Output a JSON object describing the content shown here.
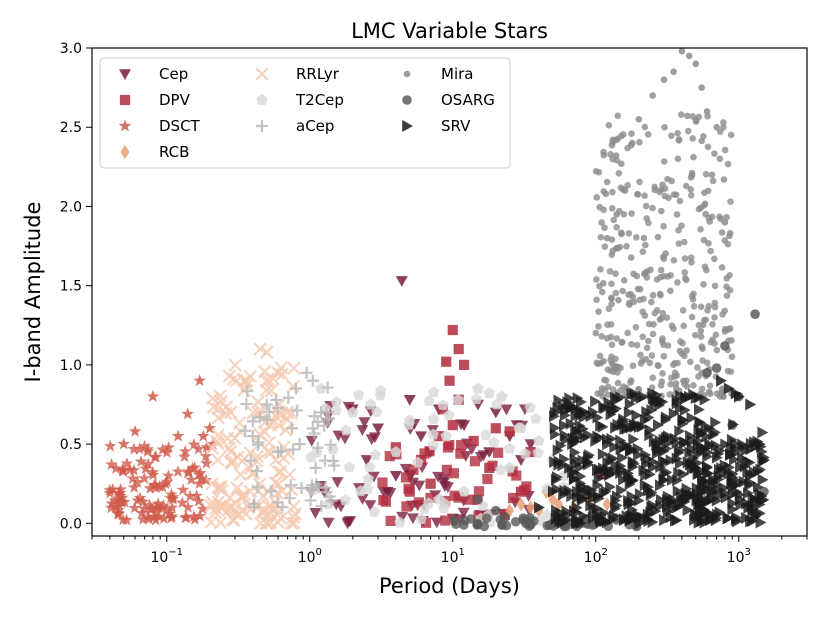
{
  "chart_data": {
    "type": "scatter",
    "title": "LMC Variable Stars",
    "xlabel": "Period (Days)",
    "ylabel": "I-band Amplitude",
    "xscale": "log",
    "xlim": [
      0.03,
      3000
    ],
    "ylim": [
      -0.08,
      3.0
    ],
    "x_ticks": [
      {
        "value": 0.1,
        "base": "10",
        "exp": "−1"
      },
      {
        "value": 1,
        "base": "10",
        "exp": "0"
      },
      {
        "value": 10,
        "base": "10",
        "exp": "1"
      },
      {
        "value": 100,
        "base": "10",
        "exp": "2"
      },
      {
        "value": 1000,
        "base": "10",
        "exp": "3"
      }
    ],
    "y_ticks": [
      {
        "value": 0.0,
        "label": "0.0"
      },
      {
        "value": 0.5,
        "label": "0.5"
      },
      {
        "value": 1.0,
        "label": "1.0"
      },
      {
        "value": 1.5,
        "label": "1.5"
      },
      {
        "value": 2.0,
        "label": "2.0"
      },
      {
        "value": 2.5,
        "label": "2.5"
      },
      {
        "value": 3.0,
        "label": "3.0"
      }
    ],
    "legend_position": "top-left",
    "legend_columns": 3,
    "series": [
      {
        "name": "Cep",
        "marker": "triangle-down",
        "color": "#7a1f3d",
        "points": [
          [
            3,
            0.6
          ],
          [
            4.4,
            1.53
          ],
          [
            6,
            0.55
          ],
          [
            2.5,
            0.4
          ],
          [
            15,
            0.75
          ],
          [
            20,
            0.7
          ],
          [
            25,
            0.55
          ],
          [
            30,
            0.4
          ],
          [
            4,
            0.3
          ],
          [
            8,
            0.72
          ],
          [
            12,
            0.62
          ],
          [
            18,
            0.45
          ],
          [
            2,
            0.72
          ],
          [
            5,
            0.78
          ],
          [
            28,
            0.62
          ],
          [
            35,
            0.5
          ],
          [
            3.5,
            0.2
          ],
          [
            7,
            0.45
          ]
        ],
        "clusters": [
          {
            "xmin": 1.0,
            "xmax": 40,
            "ymin": 0.0,
            "ymax": 0.75,
            "n": 70
          }
        ]
      },
      {
        "name": "DPV",
        "marker": "square",
        "color": "#b22d3e",
        "points": [
          [
            10,
            1.22
          ],
          [
            11,
            1.1
          ],
          [
            9,
            1.02
          ],
          [
            12,
            1.0
          ],
          [
            9.5,
            0.9
          ],
          [
            8.5,
            0.72
          ],
          [
            10,
            0.62
          ],
          [
            8,
            0.55
          ],
          [
            14,
            0.52
          ],
          [
            20,
            0.6
          ],
          [
            25,
            0.58
          ],
          [
            110,
            0.31
          ],
          [
            6,
            0.4
          ],
          [
            30,
            0.2
          ],
          [
            35,
            0.45
          ],
          [
            18,
            0.35
          ],
          [
            7,
            0.25
          ],
          [
            5,
            0.2
          ],
          [
            4,
            0.48
          ],
          [
            11,
            0.78
          ]
        ],
        "clusters": [
          {
            "xmin": 3,
            "xmax": 35,
            "ymin": 0.0,
            "ymax": 0.5,
            "n": 40
          }
        ]
      },
      {
        "name": "DSCT",
        "marker": "star",
        "color": "#d05a4a",
        "points": [
          [
            0.08,
            0.8
          ],
          [
            0.14,
            0.69
          ],
          [
            0.17,
            0.9
          ],
          [
            0.18,
            0.55
          ],
          [
            0.2,
            0.6
          ],
          [
            0.21,
            0.5
          ],
          [
            0.06,
            0.58
          ],
          [
            0.19,
            0.48
          ],
          [
            0.12,
            0.55
          ],
          [
            0.05,
            0.5
          ]
        ],
        "clusters": [
          {
            "xmin": 0.04,
            "xmax": 0.2,
            "ymin": 0.02,
            "ymax": 0.5,
            "n": 120
          }
        ]
      },
      {
        "name": "RCB",
        "marker": "diamond",
        "color": "#e8a078",
        "points": [
          [
            25,
            0.08
          ],
          [
            30,
            0.12
          ],
          [
            35,
            0.1
          ],
          [
            40,
            0.08
          ],
          [
            50,
            0.15
          ],
          [
            55,
            0.12
          ],
          [
            70,
            0.1
          ],
          [
            90,
            0.14
          ],
          [
            120,
            0.12
          ],
          [
            45,
            0.2
          ]
        ]
      },
      {
        "name": "RRLyr",
        "marker": "x",
        "color": "#f4c9b0",
        "points": [
          [
            0.45,
            1.1
          ],
          [
            0.5,
            1.08
          ],
          [
            0.35,
            0.9
          ],
          [
            0.6,
            0.95
          ],
          [
            0.28,
            0.7
          ],
          [
            0.7,
            0.7
          ]
        ],
        "clusters": [
          {
            "xmin": 0.2,
            "xmax": 0.8,
            "ymin": 0.0,
            "ymax": 1.0,
            "n": 140
          }
        ]
      },
      {
        "name": "T2Cep",
        "marker": "pentagon",
        "color": "#d8d8d8",
        "points": [
          [
            1.2,
            0.85
          ],
          [
            2,
            0.7
          ],
          [
            5,
            0.65
          ],
          [
            9,
            0.55
          ],
          [
            15,
            0.85
          ],
          [
            18,
            0.82
          ],
          [
            22,
            0.8
          ],
          [
            30,
            0.6
          ],
          [
            40,
            0.52
          ],
          [
            50,
            0.4
          ],
          [
            60,
            0.3
          ],
          [
            12,
            0.2
          ],
          [
            8,
            0.15
          ],
          [
            4,
            0.45
          ],
          [
            25,
            0.35
          ]
        ],
        "clusters": [
          {
            "xmin": 1,
            "xmax": 65,
            "ymin": 0.0,
            "ymax": 0.85,
            "n": 60
          }
        ]
      },
      {
        "name": "aCep",
        "marker": "plus",
        "color": "#b8b8b8",
        "points": [
          [
            0.95,
            0.95
          ],
          [
            1.05,
            0.9
          ],
          [
            0.8,
            0.85
          ],
          [
            0.5,
            0.75
          ],
          [
            0.75,
            0.6
          ],
          [
            0.6,
            0.45
          ],
          [
            1.2,
            0.7
          ],
          [
            0.85,
            0.5
          ],
          [
            0.4,
            0.55
          ],
          [
            1.1,
            0.35
          ]
        ],
        "clusters": [
          {
            "xmin": 0.35,
            "xmax": 1.5,
            "ymin": 0.1,
            "ymax": 0.9,
            "n": 50
          }
        ]
      },
      {
        "name": "Mira",
        "marker": "circle-small",
        "color": "#8c8c8c",
        "points": [
          [
            400,
            2.98
          ],
          [
            450,
            2.95
          ],
          [
            500,
            2.9
          ],
          [
            350,
            2.85
          ],
          [
            300,
            2.8
          ],
          [
            550,
            2.75
          ],
          [
            250,
            2.7
          ],
          [
            600,
            2.6
          ],
          [
            200,
            2.55
          ],
          [
            700,
            2.5
          ],
          [
            180,
            2.4
          ],
          [
            650,
            2.2
          ],
          [
            160,
            2.1
          ],
          [
            140,
            1.95
          ],
          [
            120,
            1.8
          ],
          [
            800,
            1.9
          ]
        ],
        "clusters": [
          {
            "xmin": 100,
            "xmax": 900,
            "ymin": 0.8,
            "ymax": 2.6,
            "n": 400
          }
        ]
      },
      {
        "name": "OSARG",
        "marker": "circle",
        "color": "#5a5a5a",
        "points": [
          [
            1300,
            1.32
          ],
          [
            800,
            1.12
          ],
          [
            700,
            0.98
          ],
          [
            600,
            0.95
          ],
          [
            1000,
            0.8
          ],
          [
            900,
            0.62
          ],
          [
            15,
            0.15
          ],
          [
            20,
            0.08
          ],
          [
            1500,
            0.2
          ]
        ],
        "clusters": [
          {
            "xmin": 10,
            "xmax": 200,
            "ymin": -0.02,
            "ymax": 0.05,
            "n": 60
          }
        ]
      },
      {
        "name": "SRV",
        "marker": "triangle-right",
        "color": "#1a1a1a",
        "points": [
          [
            750,
            0.9
          ],
          [
            850,
            0.85
          ],
          [
            950,
            0.82
          ],
          [
            1000,
            0.8
          ],
          [
            1200,
            0.75
          ],
          [
            1400,
            0.5
          ],
          [
            1500,
            0.4
          ],
          [
            1200,
            0.3
          ],
          [
            50,
            0.2
          ],
          [
            40,
            0.1
          ],
          [
            65,
            0.35
          ]
        ],
        "clusters": [
          {
            "xmin": 50,
            "xmax": 600,
            "ymin": 0.0,
            "ymax": 0.82,
            "n": 380
          },
          {
            "xmin": 500,
            "xmax": 1500,
            "ymin": 0.0,
            "ymax": 0.65,
            "n": 150
          }
        ]
      }
    ]
  }
}
